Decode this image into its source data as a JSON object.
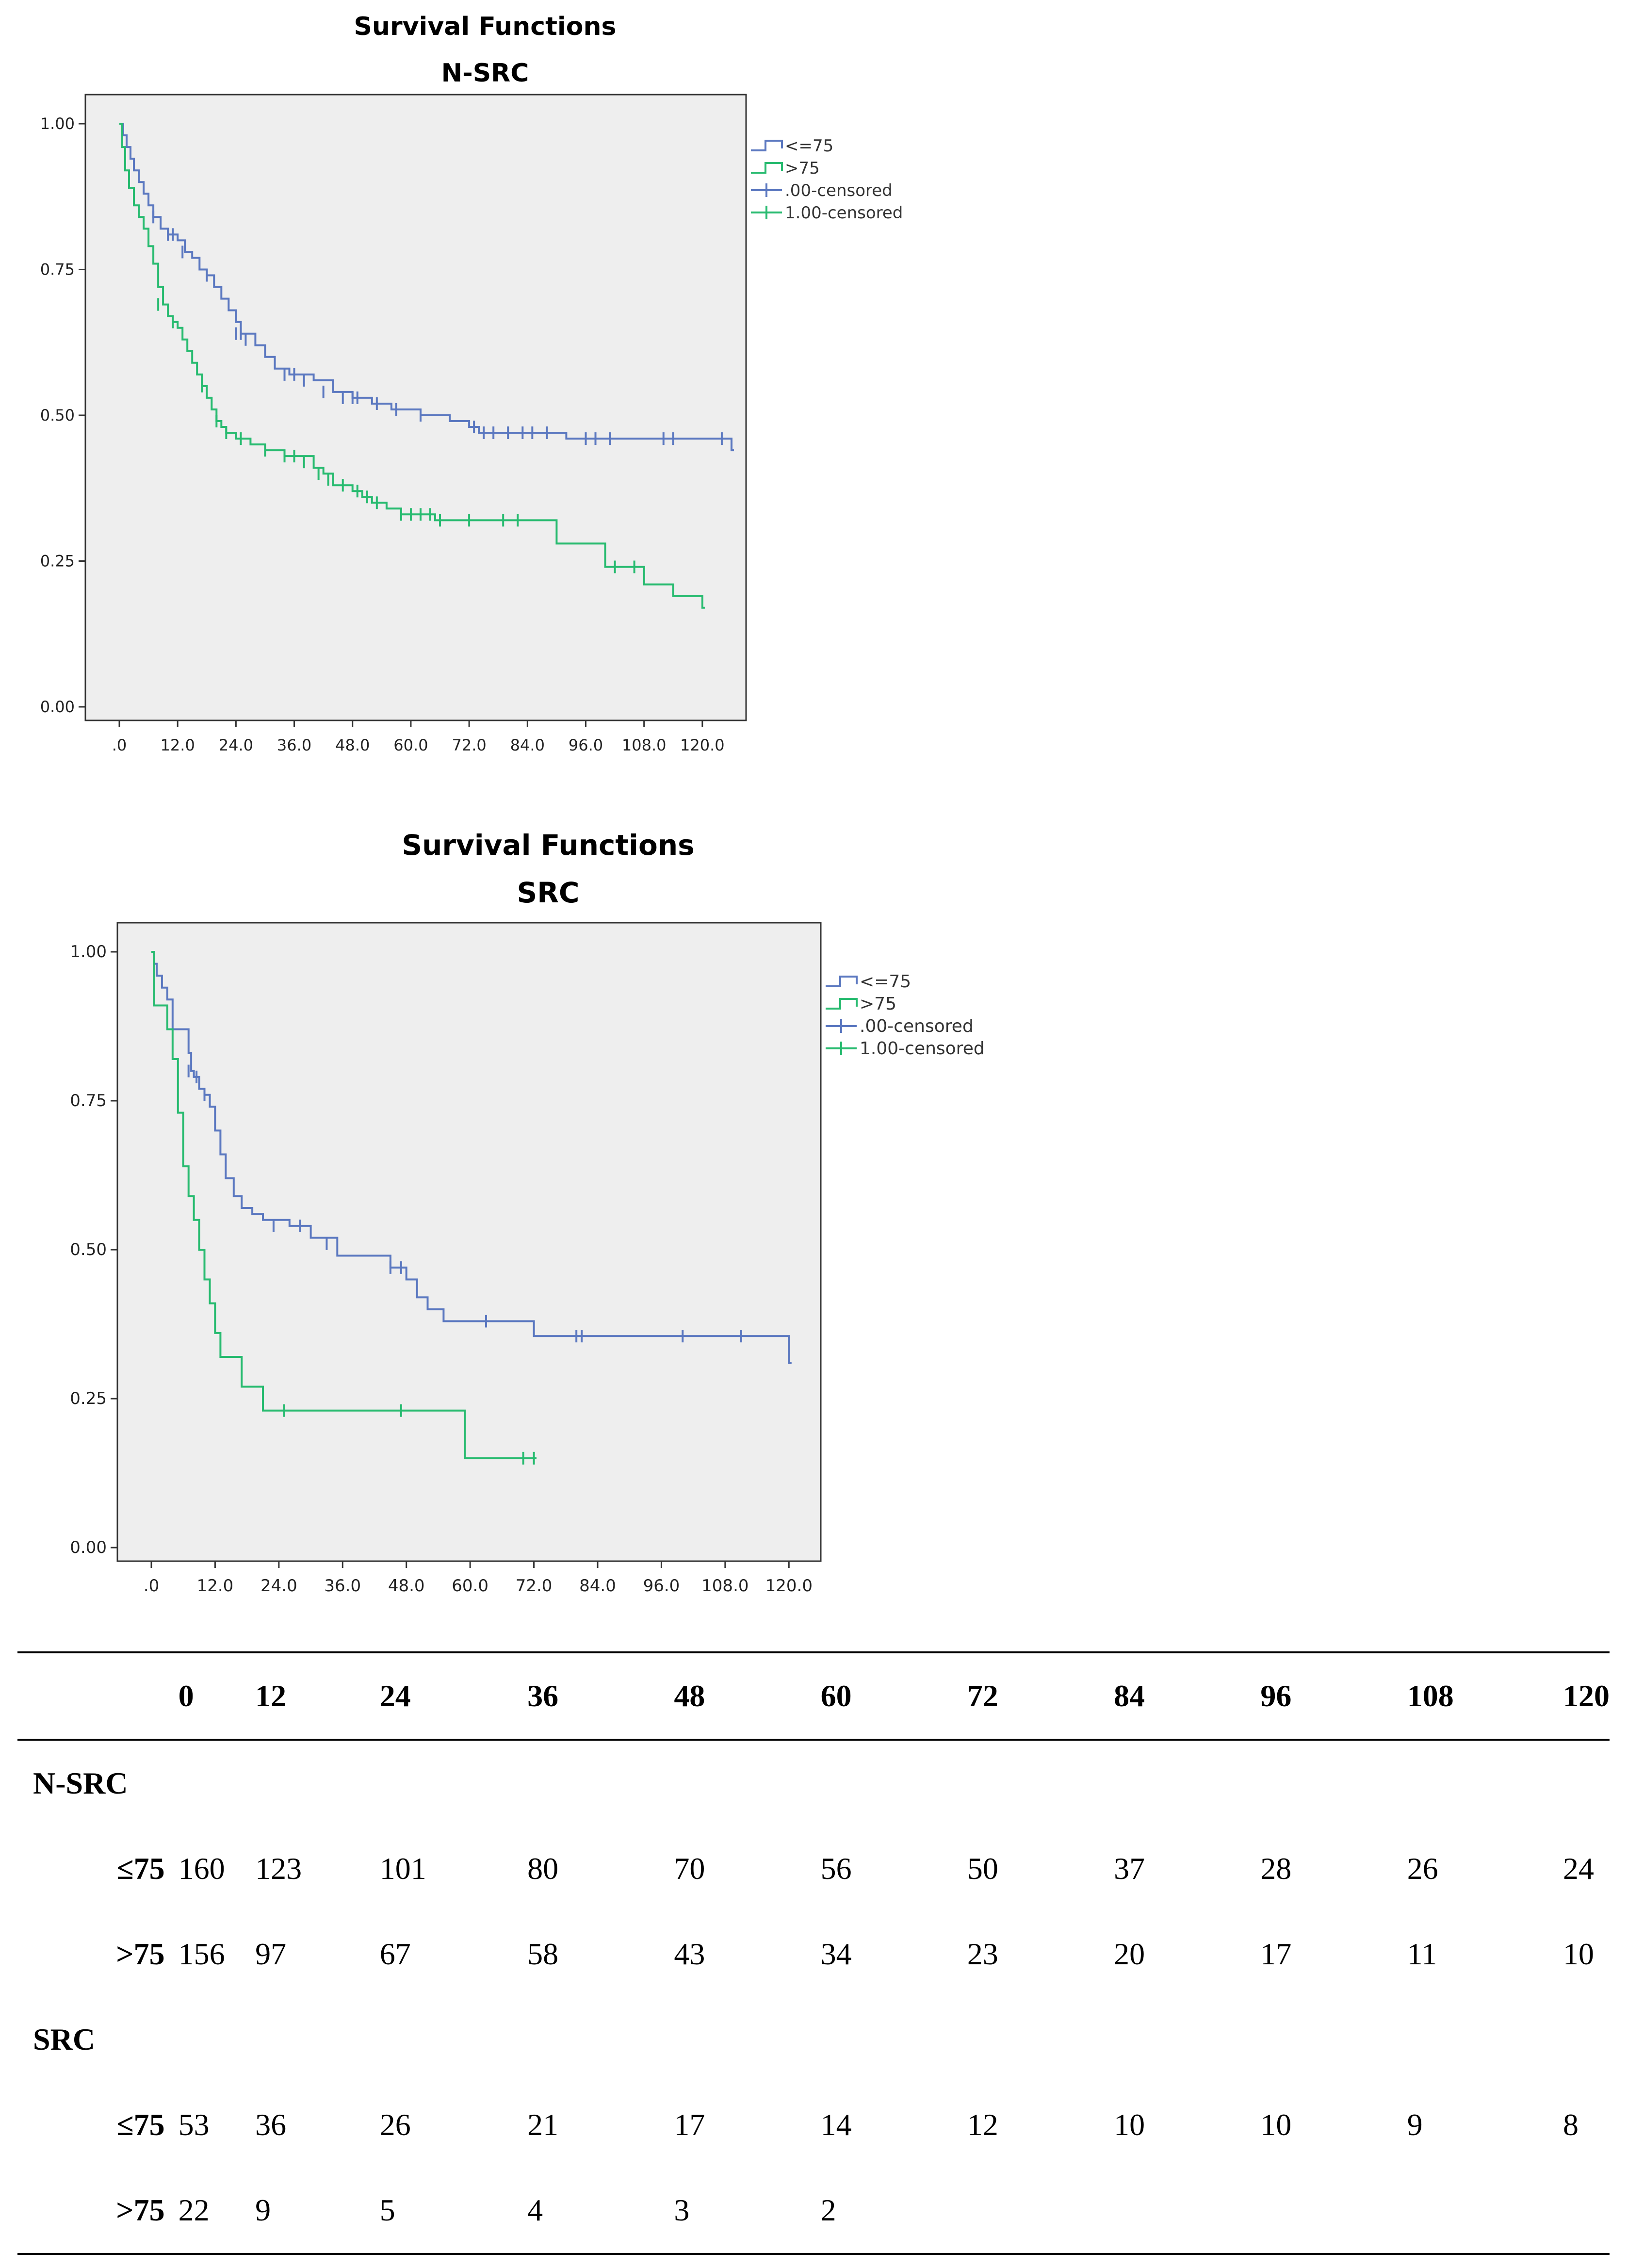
{
  "chart_data": [
    {
      "type": "line",
      "title": "Survival Functions",
      "subtitle": "N-SRC",
      "xlim": [
        0,
        129
      ],
      "ylim": [
        0,
        1
      ],
      "xticks": [
        ".0",
        "12.0",
        "24.0",
        "36.0",
        "48.0",
        "60.0",
        "72.0",
        "84.0",
        "96.0",
        "108.0",
        "120.0"
      ],
      "yticks": [
        "0.00",
        "0.25",
        "0.50",
        "0.75",
        "1.00"
      ],
      "legend": [
        "<=75",
        ">75",
        ".00-censored",
        "1.00-censored"
      ],
      "legend_position": "outside-right-top",
      "grid": false,
      "series": [
        {
          "name": "<=75",
          "color": "#5b78c0",
          "steps": [
            [
              0,
              1.0
            ],
            [
              0.8,
              0.98
            ],
            [
              1.5,
              0.96
            ],
            [
              2.3,
              0.94
            ],
            [
              3,
              0.92
            ],
            [
              4,
              0.9
            ],
            [
              5,
              0.88
            ],
            [
              6,
              0.86
            ],
            [
              7,
              0.84
            ],
            [
              8.5,
              0.82
            ],
            [
              10,
              0.81
            ],
            [
              12,
              0.8
            ],
            [
              13.5,
              0.78
            ],
            [
              15,
              0.77
            ],
            [
              16.5,
              0.75
            ],
            [
              18,
              0.74
            ],
            [
              19.5,
              0.72
            ],
            [
              21,
              0.7
            ],
            [
              22.5,
              0.68
            ],
            [
              24,
              0.66
            ],
            [
              25,
              0.64
            ],
            [
              28,
              0.62
            ],
            [
              30,
              0.6
            ],
            [
              32,
              0.58
            ],
            [
              35,
              0.57
            ],
            [
              40,
              0.56
            ],
            [
              44,
              0.54
            ],
            [
              48,
              0.53
            ],
            [
              52,
              0.52
            ],
            [
              56,
              0.51
            ],
            [
              62,
              0.5
            ],
            [
              68,
              0.49
            ],
            [
              72,
              0.48
            ],
            [
              74,
              0.47
            ],
            [
              92,
              0.46
            ],
            [
              126,
              0.44
            ]
          ],
          "censored": [
            [
              7,
              0.84
            ],
            [
              10,
              0.81
            ],
            [
              11,
              0.81
            ],
            [
              13,
              0.78
            ],
            [
              18,
              0.74
            ],
            [
              24,
              0.64
            ],
            [
              25,
              0.64
            ],
            [
              26,
              0.63
            ],
            [
              34,
              0.57
            ],
            [
              36,
              0.57
            ],
            [
              38,
              0.56
            ],
            [
              42,
              0.54
            ],
            [
              46,
              0.53
            ],
            [
              48,
              0.53
            ],
            [
              49,
              0.53
            ],
            [
              53,
              0.52
            ],
            [
              57,
              0.51
            ],
            [
              62,
              0.5
            ],
            [
              73,
              0.48
            ],
            [
              75,
              0.47
            ],
            [
              77,
              0.47
            ],
            [
              80,
              0.47
            ],
            [
              83,
              0.47
            ],
            [
              85,
              0.47
            ],
            [
              88,
              0.47
            ],
            [
              96,
              0.46
            ],
            [
              98,
              0.46
            ],
            [
              101,
              0.46
            ],
            [
              112,
              0.46
            ],
            [
              114,
              0.46
            ],
            [
              124,
              0.46
            ],
            [
              126,
              0.45
            ]
          ]
        },
        {
          "name": ">75",
          "color": "#28bb70",
          "steps": [
            [
              0,
              1.0
            ],
            [
              0.6,
              0.96
            ],
            [
              1.2,
              0.92
            ],
            [
              2,
              0.89
            ],
            [
              3,
              0.86
            ],
            [
              4,
              0.84
            ],
            [
              5,
              0.82
            ],
            [
              6,
              0.79
            ],
            [
              7,
              0.76
            ],
            [
              8,
              0.72
            ],
            [
              9,
              0.69
            ],
            [
              10,
              0.67
            ],
            [
              11,
              0.66
            ],
            [
              12,
              0.65
            ],
            [
              13,
              0.63
            ],
            [
              14,
              0.61
            ],
            [
              15,
              0.59
            ],
            [
              16,
              0.57
            ],
            [
              17,
              0.55
            ],
            [
              18,
              0.53
            ],
            [
              19,
              0.51
            ],
            [
              20,
              0.49
            ],
            [
              21,
              0.48
            ],
            [
              22,
              0.47
            ],
            [
              24,
              0.46
            ],
            [
              27,
              0.45
            ],
            [
              30,
              0.44
            ],
            [
              34,
              0.43
            ],
            [
              40,
              0.41
            ],
            [
              42,
              0.4
            ],
            [
              44,
              0.38
            ],
            [
              48,
              0.37
            ],
            [
              50,
              0.36
            ],
            [
              52,
              0.35
            ],
            [
              55,
              0.34
            ],
            [
              58,
              0.33
            ],
            [
              65,
              0.32
            ],
            [
              90,
              0.28
            ],
            [
              100,
              0.24
            ],
            [
              108,
              0.21
            ],
            [
              114,
              0.19
            ],
            [
              120,
              0.17
            ]
          ],
          "censored": [
            [
              8,
              0.69
            ],
            [
              11,
              0.66
            ],
            [
              17,
              0.55
            ],
            [
              20,
              0.49
            ],
            [
              22,
              0.47
            ],
            [
              25,
              0.46
            ],
            [
              30,
              0.44
            ],
            [
              34,
              0.43
            ],
            [
              36,
              0.43
            ],
            [
              38,
              0.42
            ],
            [
              41,
              0.4
            ],
            [
              43,
              0.39
            ],
            [
              46,
              0.38
            ],
            [
              49,
              0.37
            ],
            [
              51,
              0.36
            ],
            [
              53,
              0.35
            ],
            [
              58,
              0.33
            ],
            [
              60,
              0.33
            ],
            [
              62,
              0.33
            ],
            [
              64,
              0.33
            ],
            [
              66,
              0.32
            ],
            [
              72,
              0.32
            ],
            [
              79,
              0.32
            ],
            [
              82,
              0.32
            ],
            [
              102,
              0.24
            ],
            [
              106,
              0.24
            ]
          ]
        }
      ]
    },
    {
      "type": "line",
      "title": "Survival Functions",
      "subtitle": "SRC",
      "xlim": [
        0,
        126
      ],
      "ylim": [
        0,
        1
      ],
      "xticks": [
        ".0",
        "12.0",
        "24.0",
        "36.0",
        "48.0",
        "60.0",
        "72.0",
        "84.0",
        "96.0",
        "108.0",
        "120.0"
      ],
      "yticks": [
        "0.00",
        "0.25",
        "0.50",
        "0.75",
        "1.00"
      ],
      "legend": [
        "<=75",
        ">75",
        ".00-censored",
        "1.00-censored"
      ],
      "legend_position": "outside-right-top",
      "grid": false,
      "series": [
        {
          "name": "<=75",
          "color": "#5b78c0",
          "steps": [
            [
              0,
              1.0
            ],
            [
              0.5,
              0.98
            ],
            [
              1,
              0.96
            ],
            [
              2,
              0.94
            ],
            [
              3,
              0.92
            ],
            [
              4,
              0.87
            ],
            [
              7,
              0.83
            ],
            [
              7.5,
              0.8
            ],
            [
              8,
              0.79
            ],
            [
              9,
              0.77
            ],
            [
              10,
              0.76
            ],
            [
              11,
              0.74
            ],
            [
              12,
              0.7
            ],
            [
              13,
              0.66
            ],
            [
              14,
              0.62
            ],
            [
              15.5,
              0.59
            ],
            [
              17,
              0.57
            ],
            [
              19,
              0.56
            ],
            [
              21,
              0.55
            ],
            [
              26,
              0.54
            ],
            [
              30,
              0.52
            ],
            [
              35,
              0.49
            ],
            [
              45,
              0.47
            ],
            [
              48,
              0.45
            ],
            [
              50,
              0.42
            ],
            [
              52,
              0.4
            ],
            [
              55,
              0.38
            ],
            [
              64,
              0.38
            ],
            [
              72,
              0.355
            ],
            [
              119,
              0.355
            ],
            [
              120,
              0.31
            ]
          ],
          "censored": [
            [
              7,
              0.8
            ],
            [
              8.5,
              0.79
            ],
            [
              10,
              0.76
            ],
            [
              23,
              0.54
            ],
            [
              28,
              0.54
            ],
            [
              33,
              0.51
            ],
            [
              45,
              0.47
            ],
            [
              47,
              0.47
            ],
            [
              63,
              0.38
            ],
            [
              80,
              0.355
            ],
            [
              81,
              0.355
            ],
            [
              100,
              0.355
            ],
            [
              111,
              0.355
            ]
          ]
        },
        {
          "name": ">75",
          "color": "#28bb70",
          "steps": [
            [
              0,
              1.0
            ],
            [
              0.5,
              0.91
            ],
            [
              3,
              0.87
            ],
            [
              4,
              0.82
            ],
            [
              5,
              0.73
            ],
            [
              6,
              0.64
            ],
            [
              7,
              0.59
            ],
            [
              8,
              0.55
            ],
            [
              9,
              0.5
            ],
            [
              10,
              0.45
            ],
            [
              11,
              0.41
            ],
            [
              12,
              0.36
            ],
            [
              13,
              0.32
            ],
            [
              17,
              0.27
            ],
            [
              21,
              0.23
            ],
            [
              59,
              0.15
            ],
            [
              72,
              0.15
            ]
          ],
          "censored": [
            [
              25,
              0.23
            ],
            [
              47,
              0.23
            ],
            [
              70,
              0.15
            ],
            [
              72,
              0.15
            ]
          ]
        }
      ]
    }
  ],
  "risk_table": {
    "headers": [
      "",
      "0",
      "12",
      "24",
      "36",
      "48",
      "60",
      "72",
      "84",
      "96",
      "108",
      "120"
    ],
    "groups": [
      {
        "label": "N-SRC",
        "rows": [
          {
            "label": "≤75",
            "values": [
              "160",
              "123",
              "101",
              "80",
              "70",
              "56",
              "50",
              "37",
              "28",
              "26",
              "24"
            ]
          },
          {
            "label": ">75",
            "values": [
              "156",
              "97",
              "67",
              "58",
              "43",
              "34",
              "23",
              "20",
              "17",
              "11",
              "10"
            ]
          }
        ]
      },
      {
        "label": "SRC",
        "rows": [
          {
            "label": "≤75",
            "values": [
              "53",
              "36",
              "26",
              "21",
              "17",
              "14",
              "12",
              "10",
              "10",
              "9",
              "8"
            ]
          },
          {
            "label": ">75",
            "values": [
              "22",
              "9",
              "5",
              "4",
              "3",
              "2",
              "",
              "",
              "",
              "",
              ""
            ]
          }
        ]
      }
    ]
  }
}
